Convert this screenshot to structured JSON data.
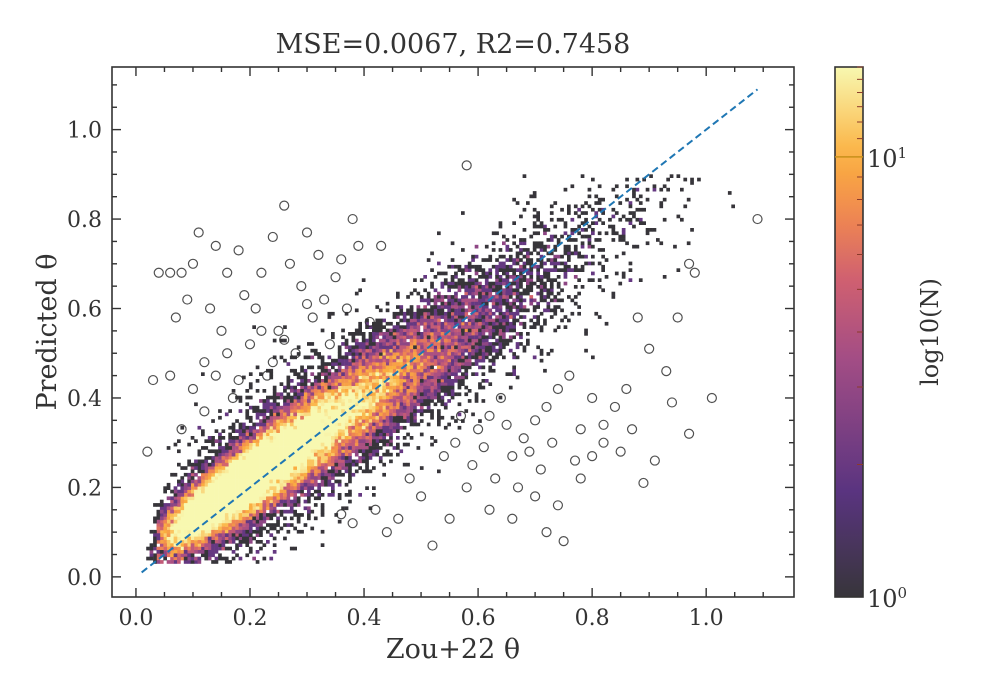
{
  "chart_data": {
    "type": "hexbin",
    "title": "MSE=0.0067, R2=0.7458",
    "xlabel": "Zou+22 θ",
    "ylabel": "Predicted θ",
    "xlim": [
      -0.042,
      1.154
    ],
    "ylim": [
      -0.045,
      1.14
    ],
    "xticks": [
      "0.0",
      "0.2",
      "0.4",
      "0.6",
      "0.8",
      "1.0"
    ],
    "yticks": [
      "0.0",
      "0.2",
      "0.4",
      "0.6",
      "0.8",
      "1.0"
    ],
    "grid": false,
    "colorbar": {
      "label": "log10(N)",
      "scale": "log",
      "range": [
        1,
        16
      ],
      "ticks": [
        "10^0",
        "10^1"
      ],
      "colormap": "inferno"
    },
    "one_to_one_line": {
      "from": [
        0.01,
        0.01
      ],
      "to": [
        1.09,
        1.09
      ],
      "color": "#1f77b4",
      "style": "dashed"
    },
    "metrics": {
      "MSE": 0.0067,
      "R2": 0.7458
    },
    "outliers": [
      [
        0.02,
        0.28
      ],
      [
        0.03,
        0.44
      ],
      [
        0.04,
        0.68
      ],
      [
        0.06,
        0.68
      ],
      [
        0.06,
        0.45
      ],
      [
        0.07,
        0.58
      ],
      [
        0.08,
        0.68
      ],
      [
        0.09,
        0.62
      ],
      [
        0.1,
        0.7
      ],
      [
        0.11,
        0.77
      ],
      [
        0.12,
        0.48
      ],
      [
        0.13,
        0.6
      ],
      [
        0.14,
        0.74
      ],
      [
        0.15,
        0.55
      ],
      [
        0.16,
        0.68
      ],
      [
        0.17,
        0.4
      ],
      [
        0.18,
        0.73
      ],
      [
        0.19,
        0.63
      ],
      [
        0.2,
        0.52
      ],
      [
        0.21,
        0.6
      ],
      [
        0.22,
        0.68
      ],
      [
        0.23,
        0.45
      ],
      [
        0.24,
        0.76
      ],
      [
        0.25,
        0.55
      ],
      [
        0.26,
        0.83
      ],
      [
        0.27,
        0.7
      ],
      [
        0.28,
        0.5
      ],
      [
        0.29,
        0.65
      ],
      [
        0.3,
        0.77
      ],
      [
        0.31,
        0.58
      ],
      [
        0.32,
        0.72
      ],
      [
        0.33,
        0.62
      ],
      [
        0.34,
        0.52
      ],
      [
        0.35,
        0.67
      ],
      [
        0.36,
        0.71
      ],
      [
        0.37,
        0.6
      ],
      [
        0.38,
        0.8
      ],
      [
        0.39,
        0.74
      ],
      [
        0.41,
        0.57
      ],
      [
        0.43,
        0.74
      ],
      [
        0.08,
        0.33
      ],
      [
        0.1,
        0.42
      ],
      [
        0.12,
        0.37
      ],
      [
        0.14,
        0.45
      ],
      [
        0.16,
        0.5
      ],
      [
        0.18,
        0.44
      ],
      [
        0.22,
        0.55
      ],
      [
        0.26,
        0.53
      ],
      [
        0.3,
        0.61
      ],
      [
        0.24,
        0.48
      ],
      [
        0.58,
        0.92
      ],
      [
        1.09,
        0.8
      ],
      [
        0.97,
        0.7
      ],
      [
        0.98,
        0.68
      ],
      [
        0.95,
        0.58
      ],
      [
        0.88,
        0.58
      ],
      [
        0.9,
        0.51
      ],
      [
        0.93,
        0.46
      ],
      [
        0.94,
        0.39
      ],
      [
        0.97,
        0.32
      ],
      [
        1.01,
        0.4
      ],
      [
        0.86,
        0.42
      ],
      [
        0.84,
        0.38
      ],
      [
        0.82,
        0.3
      ],
      [
        0.8,
        0.27
      ],
      [
        0.78,
        0.22
      ],
      [
        0.74,
        0.16
      ],
      [
        0.72,
        0.1
      ],
      [
        0.75,
        0.08
      ],
      [
        0.7,
        0.18
      ],
      [
        0.66,
        0.13
      ],
      [
        0.62,
        0.15
      ],
      [
        0.58,
        0.2
      ],
      [
        0.55,
        0.13
      ],
      [
        0.52,
        0.07
      ],
      [
        0.5,
        0.18
      ],
      [
        0.48,
        0.22
      ],
      [
        0.46,
        0.13
      ],
      [
        0.44,
        0.1
      ],
      [
        0.42,
        0.15
      ],
      [
        0.38,
        0.12
      ],
      [
        0.36,
        0.14
      ],
      [
        0.54,
        0.27
      ],
      [
        0.56,
        0.3
      ],
      [
        0.6,
        0.33
      ],
      [
        0.62,
        0.36
      ],
      [
        0.64,
        0.4
      ],
      [
        0.66,
        0.27
      ],
      [
        0.68,
        0.31
      ],
      [
        0.7,
        0.35
      ],
      [
        0.72,
        0.38
      ],
      [
        0.74,
        0.42
      ],
      [
        0.76,
        0.45
      ],
      [
        0.78,
        0.33
      ],
      [
        0.8,
        0.4
      ],
      [
        0.82,
        0.34
      ],
      [
        0.85,
        0.28
      ],
      [
        0.89,
        0.21
      ],
      [
        0.87,
        0.33
      ],
      [
        0.91,
        0.26
      ],
      [
        0.57,
        0.36
      ],
      [
        0.59,
        0.25
      ],
      [
        0.61,
        0.29
      ],
      [
        0.63,
        0.22
      ],
      [
        0.65,
        0.34
      ],
      [
        0.67,
        0.2
      ],
      [
        0.69,
        0.28
      ],
      [
        0.71,
        0.24
      ],
      [
        0.73,
        0.3
      ],
      [
        0.77,
        0.26
      ]
    ]
  }
}
